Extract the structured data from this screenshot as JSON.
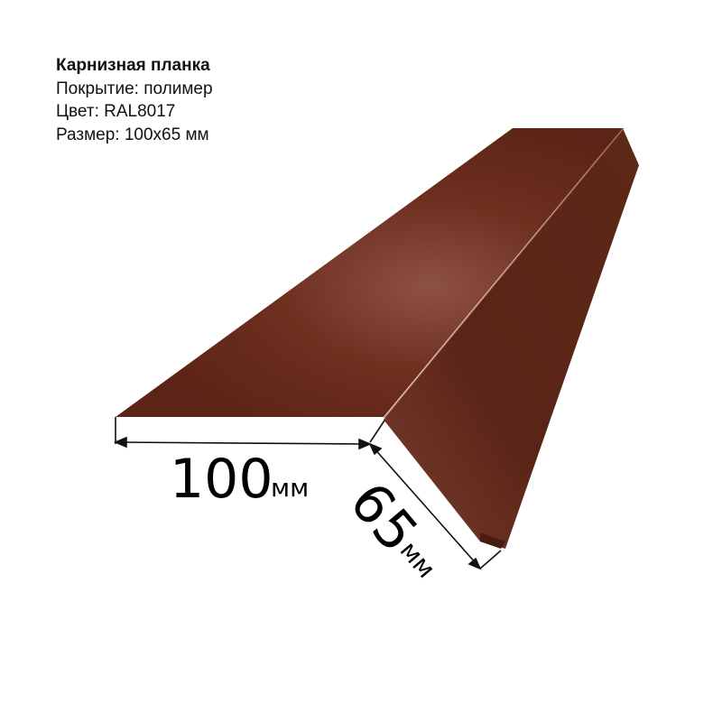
{
  "product": {
    "title": "Карнизная планка",
    "coating": "Покрытие: полимер",
    "color": "Цвет: RAL8017",
    "size": "Размер: 100x65 мм"
  },
  "dimensions": {
    "width_value": "100",
    "width_unit": "мм",
    "height_value": "65",
    "height_unit": "мм"
  },
  "colors": {
    "panel_left": "#6a2c1d",
    "panel_right": "#5a2416",
    "highlight": "#8e5243"
  }
}
